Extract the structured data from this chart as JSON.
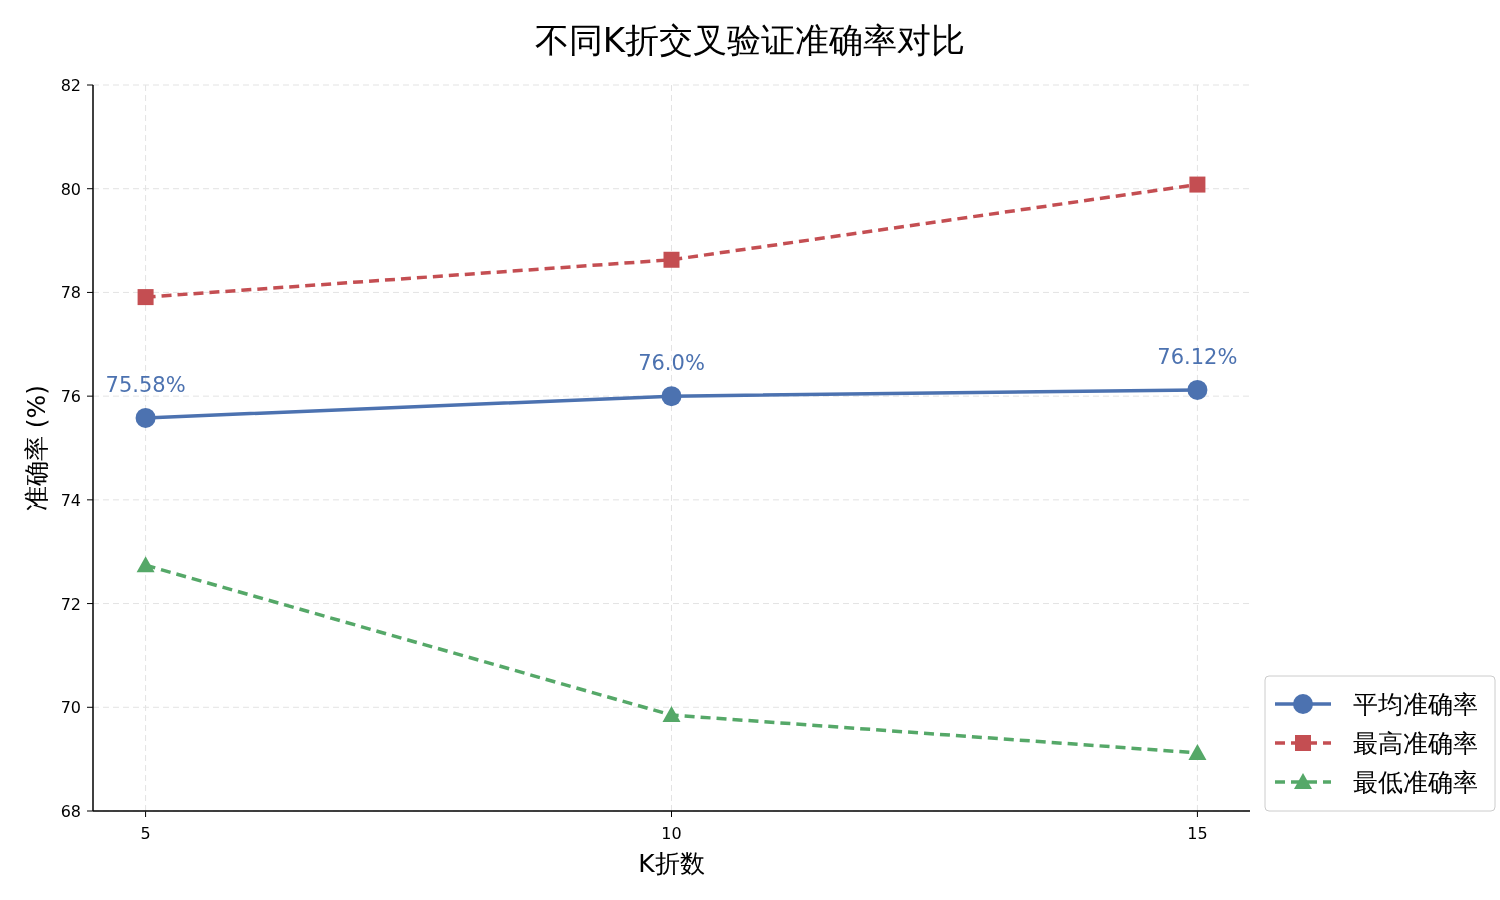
{
  "chart_data": {
    "type": "line",
    "title": "不同K折交叉验证准确率对比",
    "xlabel": "K折数",
    "ylabel": "准确率 (%)",
    "x": [
      5,
      10,
      15
    ],
    "series": [
      {
        "name": "平均准确率",
        "color": "#4c72b0",
        "values": [
          75.58,
          76.0,
          76.12
        ],
        "marker": "circle",
        "line_style": "solid",
        "value_labels": [
          "75.58%",
          "76.0%",
          "76.12%"
        ]
      },
      {
        "name": "最高准确率",
        "color": "#c44e52",
        "values": [
          77.91,
          78.63,
          80.08
        ],
        "marker": "square",
        "line_style": "dashed"
      },
      {
        "name": "最低准确率",
        "color": "#55a868",
        "values": [
          72.74,
          69.85,
          69.12
        ],
        "marker": "triangle",
        "line_style": "dashed"
      }
    ],
    "xlim": [
      4.5,
      15.5
    ],
    "ylim": [
      68,
      82
    ],
    "xticks": [
      5,
      10,
      15
    ],
    "yticks": [
      68,
      70,
      72,
      74,
      76,
      78,
      80,
      82
    ],
    "grid": true,
    "legend": "bottom right"
  }
}
